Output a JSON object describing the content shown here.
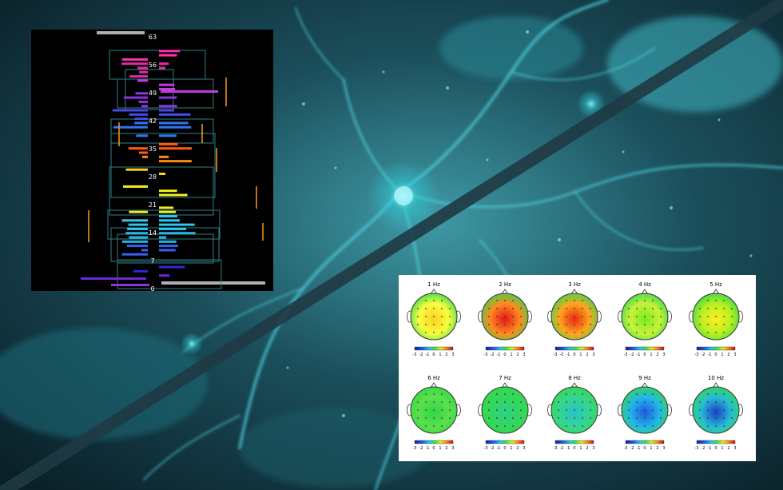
{
  "ticks": [
    "63",
    "56",
    "49",
    "42",
    "35",
    "28",
    "21",
    "14",
    "7",
    "0"
  ],
  "maps": [
    {
      "label": "1 Hz",
      "blob": "#ffd020",
      "blob2": "#f6ff40",
      "mood": "green"
    },
    {
      "label": "2 Hz",
      "blob": "#e01818",
      "blob2": "#ff8a20",
      "mood": "red"
    },
    {
      "label": "3 Hz",
      "blob": "#e62a10",
      "blob2": "#ffa520",
      "mood": "orange"
    },
    {
      "label": "4 Hz",
      "blob": "#79e820",
      "blob2": "#c8f23a",
      "mood": "green"
    },
    {
      "label": "5 Hz",
      "blob": "#fff020",
      "blob2": "#b7f020",
      "mood": "yellow"
    },
    {
      "label": "6 Hz",
      "blob": "#2fd648",
      "blob2": "#5be04b",
      "mood": "green"
    },
    {
      "label": "7 Hz",
      "blob": "#2fcf8a",
      "blob2": "#33d85c",
      "mood": "green"
    },
    {
      "label": "8 Hz",
      "blob": "#25c3c8",
      "blob2": "#37d690",
      "mood": "cyan"
    },
    {
      "label": "9 Hz",
      "blob": "#1e5ae0",
      "blob2": "#22b8e8",
      "mood": "blue"
    },
    {
      "label": "10 Hz",
      "blob": "#1d3fc7",
      "blob2": "#26bdd6",
      "mood": "blue"
    }
  ],
  "colorbar_ticks": [
    "-3",
    "-2",
    "-1",
    "0",
    "1",
    "2",
    "3"
  ],
  "colors": {
    "background": "#0e2a33",
    "accent": "#2fd0d8",
    "stripe": "#1f3a44"
  }
}
